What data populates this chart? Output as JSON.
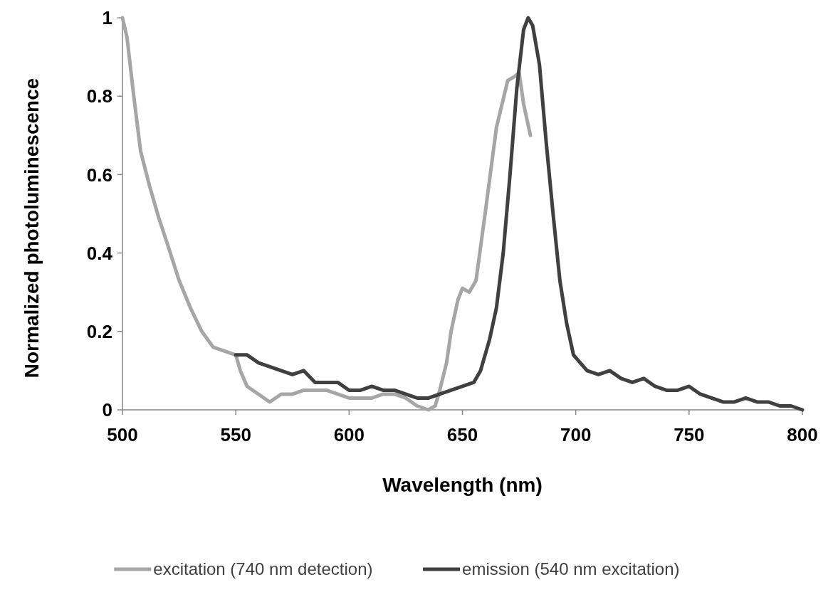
{
  "chart_data": {
    "type": "line",
    "xlabel": "Wavelength (nm)",
    "ylabel": "Normalized photoluminescence",
    "xlim": [
      500,
      800
    ],
    "xticks": [
      500,
      550,
      600,
      650,
      700,
      750,
      800
    ],
    "ylim": [
      0,
      1
    ],
    "yticks": [
      0,
      0.2,
      0.4,
      0.6,
      0.8,
      1
    ],
    "grid": false,
    "legend": "bottom",
    "marker": "none",
    "line_style": "solid",
    "series": [
      {
        "name": "excitation (740 nm detection)",
        "color": "#a6a6a6",
        "x": [
          500,
          502,
          505,
          508,
          512,
          516,
          520,
          525,
          530,
          535,
          540,
          545,
          550,
          552,
          555,
          560,
          565,
          570,
          575,
          580,
          585,
          590,
          595,
          600,
          605,
          610,
          615,
          620,
          625,
          630,
          635,
          638,
          640,
          643,
          645,
          648,
          650,
          653,
          656,
          660,
          665,
          670,
          673,
          675,
          677,
          680
        ],
        "values": [
          1.0,
          0.95,
          0.8,
          0.66,
          0.57,
          0.49,
          0.42,
          0.33,
          0.26,
          0.2,
          0.16,
          0.15,
          0.14,
          0.1,
          0.06,
          0.04,
          0.02,
          0.04,
          0.04,
          0.05,
          0.05,
          0.05,
          0.04,
          0.03,
          0.03,
          0.03,
          0.04,
          0.04,
          0.03,
          0.01,
          0.0,
          0.01,
          0.05,
          0.12,
          0.2,
          0.28,
          0.31,
          0.3,
          0.33,
          0.5,
          0.72,
          0.84,
          0.85,
          0.86,
          0.78,
          0.7
        ]
      },
      {
        "name": "emission (540 nm excitation)",
        "color": "#404040",
        "x": [
          550,
          555,
          560,
          565,
          570,
          575,
          580,
          585,
          590,
          595,
          600,
          605,
          610,
          615,
          620,
          625,
          630,
          635,
          640,
          645,
          650,
          655,
          658,
          662,
          665,
          668,
          671,
          674,
          677,
          679,
          681,
          684,
          687,
          690,
          693,
          696,
          699,
          702,
          705,
          710,
          715,
          720,
          725,
          730,
          735,
          740,
          745,
          750,
          755,
          760,
          765,
          770,
          775,
          780,
          785,
          790,
          795,
          800
        ],
        "values": [
          0.14,
          0.14,
          0.12,
          0.11,
          0.1,
          0.09,
          0.1,
          0.07,
          0.07,
          0.07,
          0.05,
          0.05,
          0.06,
          0.05,
          0.05,
          0.04,
          0.03,
          0.03,
          0.04,
          0.05,
          0.06,
          0.07,
          0.1,
          0.18,
          0.26,
          0.4,
          0.6,
          0.82,
          0.97,
          1.0,
          0.98,
          0.88,
          0.68,
          0.5,
          0.33,
          0.22,
          0.14,
          0.12,
          0.1,
          0.09,
          0.1,
          0.08,
          0.07,
          0.08,
          0.06,
          0.05,
          0.05,
          0.06,
          0.04,
          0.03,
          0.02,
          0.02,
          0.03,
          0.02,
          0.02,
          0.01,
          0.01,
          0.0
        ]
      }
    ]
  }
}
